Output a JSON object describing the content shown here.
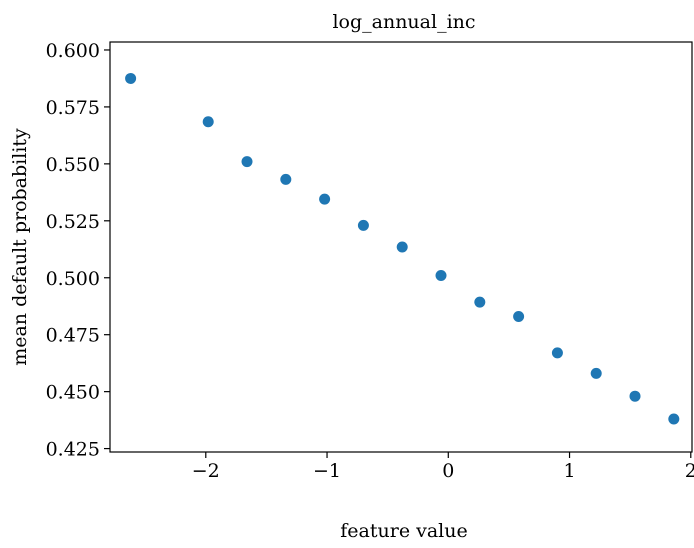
{
  "chart_data": {
    "type": "scatter",
    "title": "log_annual_inc",
    "xlabel": "feature value",
    "ylabel": "mean default probability",
    "xlim": [
      -2.79,
      2.01
    ],
    "ylim": [
      0.4235,
      0.6035
    ],
    "xticks": [
      -2,
      -1,
      0,
      1,
      2
    ],
    "xtick_labels": [
      "−2",
      "−1",
      "0",
      "1",
      "2"
    ],
    "yticks": [
      0.425,
      0.45,
      0.475,
      0.5,
      0.525,
      0.55,
      0.575,
      0.6
    ],
    "ytick_labels": [
      "0.425",
      "0.450",
      "0.475",
      "0.500",
      "0.525",
      "0.550",
      "0.575",
      "0.600"
    ],
    "grid": false,
    "marker_color": "#1f77b4",
    "x": [
      -2.62,
      -1.98,
      -1.66,
      -1.34,
      -1.02,
      -0.7,
      -0.38,
      -0.06,
      0.26,
      0.58,
      0.9,
      1.22,
      1.54,
      1.86
    ],
    "y": [
      0.5875,
      0.5685,
      0.551,
      0.5432,
      0.5345,
      0.523,
      0.5135,
      0.501,
      0.4893,
      0.483,
      0.467,
      0.458,
      0.448,
      0.438
    ]
  }
}
